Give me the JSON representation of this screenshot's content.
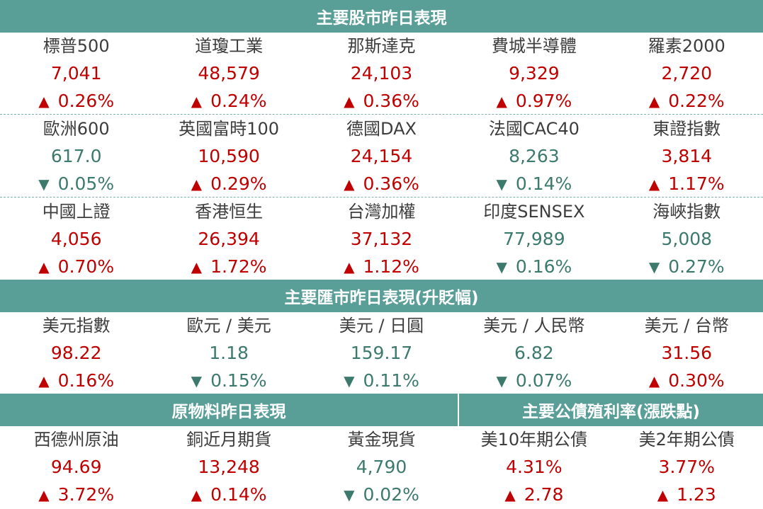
{
  "sections": {
    "stocks_title": "主要股市昨日表現",
    "fx_title": "主要匯市昨日表現(升貶幅)",
    "commodities_title": "原物料昨日表現",
    "bonds_title": "主要公債殖利率(漲跌點)"
  },
  "colors": {
    "header": "#5a9e98",
    "up": "#c00000",
    "down": "#3d7a6e"
  },
  "stocks": [
    [
      {
        "name": "標普500",
        "value": "7,041",
        "change": "0.26%",
        "dir": "up"
      },
      {
        "name": "道瓊工業",
        "value": "48,579",
        "change": "0.24%",
        "dir": "up"
      },
      {
        "name": "那斯達克",
        "value": "24,103",
        "change": "0.36%",
        "dir": "up"
      },
      {
        "name": "費城半導體",
        "value": "9,329",
        "change": "0.97%",
        "dir": "up"
      },
      {
        "name": "羅素2000",
        "value": "2,720",
        "change": "0.22%",
        "dir": "up"
      }
    ],
    [
      {
        "name": "歐洲600",
        "value": "617.0",
        "change": "0.05%",
        "dir": "down"
      },
      {
        "name": "英國富時100",
        "value": "10,590",
        "change": "0.29%",
        "dir": "up"
      },
      {
        "name": "德國DAX",
        "value": "24,154",
        "change": "0.36%",
        "dir": "up"
      },
      {
        "name": "法國CAC40",
        "value": "8,263",
        "change": "0.14%",
        "dir": "down"
      },
      {
        "name": "東證指數",
        "value": "3,814",
        "change": "1.17%",
        "dir": "up"
      }
    ],
    [
      {
        "name": "中國上證",
        "value": "4,056",
        "change": "0.70%",
        "dir": "up"
      },
      {
        "name": "香港恒生",
        "value": "26,394",
        "change": "1.72%",
        "dir": "up"
      },
      {
        "name": "台灣加權",
        "value": "37,132",
        "change": "1.12%",
        "dir": "up"
      },
      {
        "name": "印度SENSEX",
        "value": "77,989",
        "change": "0.16%",
        "dir": "down"
      },
      {
        "name": "海峽指數",
        "value": "5,008",
        "change": "0.27%",
        "dir": "down"
      }
    ]
  ],
  "fx": [
    {
      "name": "美元指數",
      "value": "98.22",
      "change": "0.16%",
      "dir": "up"
    },
    {
      "name": "歐元 / 美元",
      "value": "1.18",
      "change": "0.15%",
      "dir": "down"
    },
    {
      "name": "美元 / 日圓",
      "value": "159.17",
      "change": "0.11%",
      "dir": "down"
    },
    {
      "name": "美元 / 人民幣",
      "value": "6.82",
      "change": "0.07%",
      "dir": "down"
    },
    {
      "name": "美元 / 台幣",
      "value": "31.56",
      "change": "0.30%",
      "dir": "up"
    }
  ],
  "commodities": [
    {
      "name": "西德州原油",
      "value": "94.69",
      "change": "3.72%",
      "dir": "up"
    },
    {
      "name": "銅近月期貨",
      "value": "13,248",
      "change": "0.14%",
      "dir": "up"
    },
    {
      "name": "黃金現貨",
      "value": "4,790",
      "change": "0.02%",
      "dir": "down"
    }
  ],
  "bonds": [
    {
      "name": "美10年期公債",
      "value": "4.31%",
      "change": "2.78",
      "dir": "up"
    },
    {
      "name": "美2年期公債",
      "value": "3.77%",
      "change": "1.23",
      "dir": "up"
    }
  ],
  "arrows": {
    "up": "▲",
    "down": "▼"
  }
}
